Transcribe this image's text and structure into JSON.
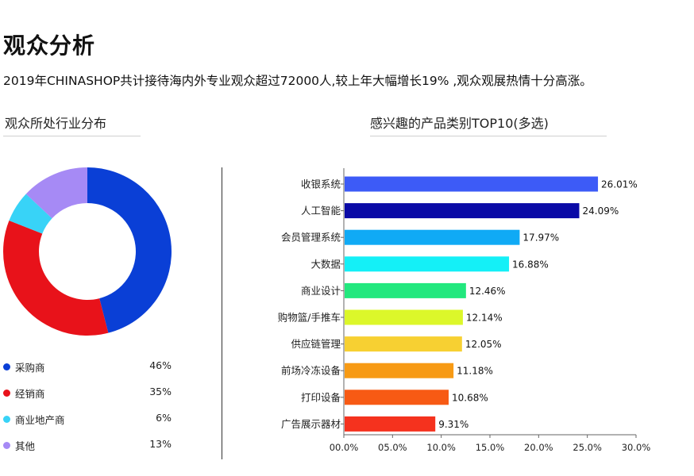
{
  "page": {
    "title": "观众分析",
    "intro": "2019年CHINASHOP共计接待海内外专业观众超过72000人,较上年大幅增长19% ,观众观展热情十分高涨。"
  },
  "left_section": {
    "title": "观众所处行业分布"
  },
  "right_section": {
    "title": "感兴趣的产品类别TOP10(多选)"
  },
  "chart_data": [
    {
      "type": "pie",
      "title": "观众所处行业分布",
      "donut": true,
      "slices": [
        {
          "label": "采购商",
          "value": 46,
          "display": "46%",
          "color": "#0a3fd6"
        },
        {
          "label": "经销商",
          "value": 35,
          "display": "35%",
          "color": "#e8121a"
        },
        {
          "label": "商业地产商",
          "value": 6,
          "display": "6%",
          "color": "#38d3f7"
        },
        {
          "label": "其他",
          "value": 13,
          "display": "13%",
          "color": "#a68af5"
        }
      ]
    },
    {
      "type": "bar",
      "orientation": "horizontal",
      "title": "感兴趣的产品类别TOP10(多选)",
      "categories": [
        "收银系统",
        "人工智能",
        "会员管理系统",
        "大数据",
        "商业设计",
        "购物篮/手推车",
        "供应链管理",
        "前场冷冻设备",
        "打印设备",
        "广告展示器材"
      ],
      "values": [
        26.01,
        24.09,
        17.97,
        16.88,
        12.46,
        12.14,
        12.05,
        11.18,
        10.68,
        9.31
      ],
      "value_labels": [
        "26.01%",
        "24.09%",
        "17.97%",
        "16.88%",
        "12.46%",
        "12.14%",
        "12.05%",
        "11.18%",
        "10.68%",
        "9.31%"
      ],
      "colors": [
        "#3d5bf7",
        "#0a0aa6",
        "#10aaf5",
        "#14f0f7",
        "#22e87e",
        "#dcf72a",
        "#f7d032",
        "#f79a14",
        "#f75a14",
        "#f5321e"
      ],
      "xlim": [
        0,
        30
      ],
      "xticks": [
        0,
        5,
        10,
        15,
        20,
        25,
        30
      ],
      "xtick_labels": [
        "00.0%",
        "05.0%",
        "10.0%",
        "15.0%",
        "20.0%",
        "25.0%",
        "30.0%"
      ],
      "grid": false
    }
  ]
}
